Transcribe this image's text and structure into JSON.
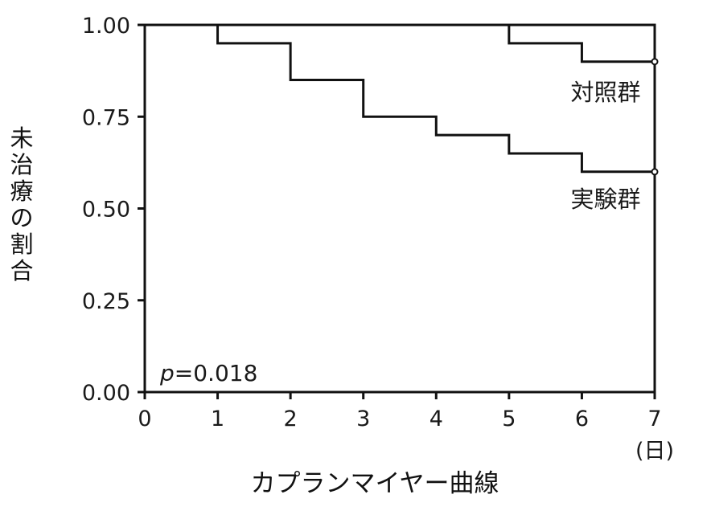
{
  "chart_data": {
    "type": "line",
    "step": true,
    "title": "",
    "xlabel": "カプランマイヤー曲線",
    "ylabel": "未治療の割合",
    "x_unit": "(日)",
    "xlim": [
      0,
      7
    ],
    "ylim": [
      0,
      1
    ],
    "x_ticks": [
      0,
      1,
      2,
      3,
      4,
      5,
      6,
      7
    ],
    "x_tick_labels": [
      "0",
      "1",
      "2",
      "3",
      "4",
      "5",
      "6",
      "7"
    ],
    "y_ticks": [
      0,
      0.25,
      0.5,
      0.75,
      1.0
    ],
    "y_tick_labels": [
      "0.00",
      "0.25",
      "0.50",
      "0.75",
      "1.00"
    ],
    "grid": false,
    "series": [
      {
        "name": "対照群",
        "x": [
          0,
          5,
          6,
          7
        ],
        "y": [
          1.0,
          0.95,
          0.9,
          0.9
        ],
        "censor_x": 7,
        "censor_y": 0.9
      },
      {
        "name": "実験群",
        "x": [
          0,
          1,
          2,
          3,
          4,
          5,
          6,
          7
        ],
        "y": [
          1.0,
          0.95,
          0.85,
          0.75,
          0.7,
          0.65,
          0.6,
          0.6
        ],
        "censor_x": 7,
        "censor_y": 0.6
      }
    ],
    "annotation": {
      "symbol": "p",
      "text": "=0.018"
    },
    "colors": {
      "line": "#111111",
      "axis": "#111111"
    }
  }
}
